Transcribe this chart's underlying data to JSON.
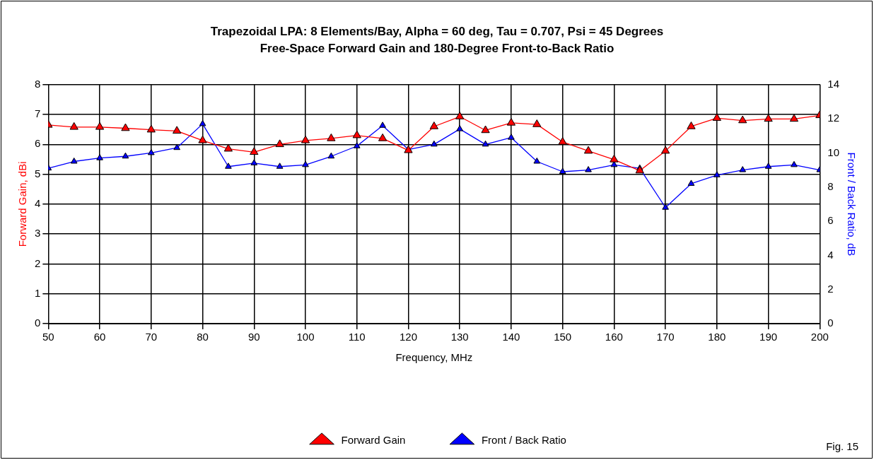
{
  "chart_data": {
    "type": "line",
    "title": "Trapezoidal LPA: 8 Elements/Bay, Alpha = 60 deg, Tau = 0.707, Psi = 45 Degrees",
    "subtitle": "Free-Space Forward Gain and 180-Degree Front-to-Back Ratio",
    "xlabel": "Frequency, MHz",
    "ylabel": "Forward Gain, dBi",
    "y2label": "Front / Back Ratio, dB",
    "x": [
      50,
      55,
      60,
      65,
      70,
      75,
      80,
      85,
      90,
      95,
      100,
      105,
      110,
      115,
      120,
      125,
      130,
      135,
      140,
      145,
      150,
      155,
      160,
      165,
      170,
      175,
      180,
      185,
      190,
      195,
      200
    ],
    "series": [
      {
        "name": "Forward Gain",
        "color": "#ff0000",
        "values": [
          6.65,
          6.58,
          6.58,
          6.54,
          6.49,
          6.45,
          6.13,
          5.85,
          5.74,
          6.0,
          6.13,
          6.2,
          6.3,
          6.2,
          5.8,
          6.6,
          6.93,
          6.47,
          6.72,
          6.67,
          6.08,
          5.78,
          5.49,
          5.12,
          5.78,
          6.6,
          6.88,
          6.8,
          6.85,
          6.85,
          6.97
        ]
      },
      {
        "name": "Front / Back Ratio",
        "color": "#0000ff",
        "axis": "y2",
        "values": [
          9.1,
          9.5,
          9.7,
          9.8,
          10.0,
          10.3,
          11.7,
          9.2,
          9.4,
          9.2,
          9.3,
          9.8,
          10.4,
          11.6,
          10.2,
          10.5,
          11.4,
          10.5,
          10.9,
          9.5,
          8.9,
          9.0,
          9.3,
          9.1,
          6.8,
          8.2,
          8.7,
          9.0,
          9.2,
          9.3,
          9.0
        ]
      }
    ],
    "xlim": [
      50,
      200
    ],
    "xticks": [
      50,
      60,
      70,
      80,
      90,
      100,
      110,
      120,
      130,
      140,
      150,
      160,
      170,
      180,
      190,
      200
    ],
    "ylim": [
      0,
      8
    ],
    "yticks": [
      0,
      1,
      2,
      3,
      4,
      5,
      6,
      7,
      8
    ],
    "y2lim": [
      0,
      14
    ],
    "y2ticks": [
      0,
      2,
      4,
      6,
      8,
      10,
      12,
      14
    ],
    "grid": true,
    "legend": "bottom",
    "marker": "triangle",
    "line_style": "solid",
    "annotations": [
      "Fig. 15"
    ]
  }
}
